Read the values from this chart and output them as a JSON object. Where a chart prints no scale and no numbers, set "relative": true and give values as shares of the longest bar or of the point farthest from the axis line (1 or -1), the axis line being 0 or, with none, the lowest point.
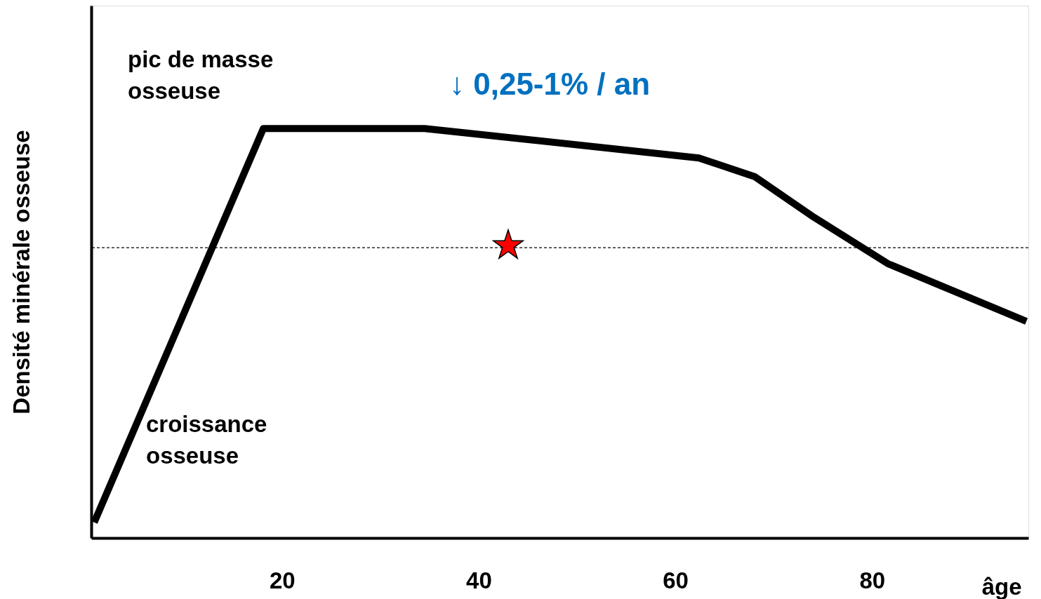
{
  "chart_data": {
    "type": "line",
    "relative": true,
    "xlabel": "âge",
    "ylabel": "Densité minérale osseuse",
    "xlim": [
      0.6,
      95.9
    ],
    "xticks": [
      20,
      40,
      60,
      80
    ],
    "grid": false,
    "series": [
      {
        "color": "#000000",
        "line_style": "solid",
        "marker": "none",
        "x": [
          0.9,
          18.1,
          34.5,
          62.4,
          68.1,
          74.1,
          81.6,
          95.7
        ],
        "values": [
          0.038,
          1,
          1,
          0.928,
          0.882,
          0.783,
          0.67,
          0.529
        ]
      },
      {
        "type": "scatter",
        "color": "#ff0000",
        "marker": "star",
        "x": [
          43
        ],
        "values": [
          0.714
        ]
      }
    ],
    "ref_lines": [
      {
        "axis": "y",
        "value": 0.709,
        "color": "#000000",
        "line_style": "dashed"
      }
    ],
    "annotations": [
      "pic de masse\nosseuse",
      "croissance\nosseuse",
      "↓ 0,25-1% / an"
    ]
  }
}
